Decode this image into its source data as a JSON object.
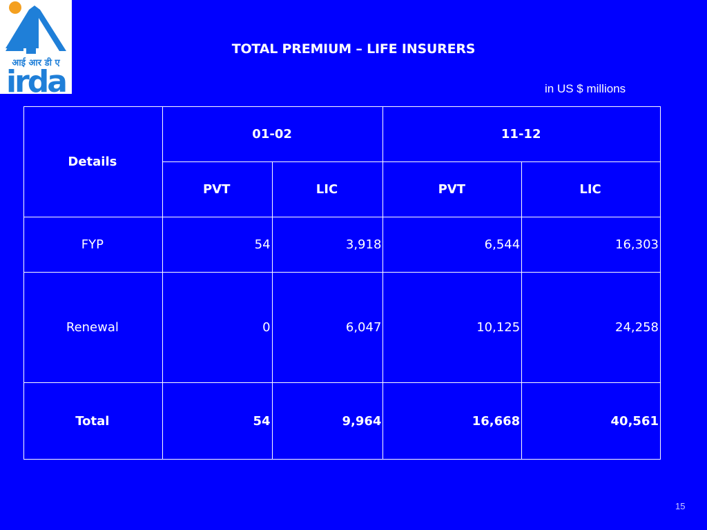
{
  "logo": {
    "devanagari_text": "आई आर डी ए",
    "wordmark": "irda"
  },
  "title": "TOTAL PREMIUM – LIFE INSURERS",
  "units": "in US $ millions",
  "table": {
    "details_header": "Details",
    "periods": [
      "01-02",
      "11-12"
    ],
    "subheaders": [
      "PVT",
      "LIC",
      "PVT",
      "LIC"
    ],
    "rows": [
      {
        "label": "FYP",
        "values": [
          "54",
          "3,918",
          "6,544",
          "16,303"
        ]
      },
      {
        "label": "Renewal",
        "values": [
          "0",
          "6,047",
          "10,125",
          "24,258"
        ]
      },
      {
        "label": "Total",
        "values": [
          "54",
          "9,964",
          "16,668",
          "40,561"
        ]
      }
    ]
  },
  "page_number": "15",
  "colors": {
    "background": "#0000ff",
    "text": "#ffffff",
    "logo_blue": "#1f7fd8",
    "logo_orange": "#f4a020"
  }
}
